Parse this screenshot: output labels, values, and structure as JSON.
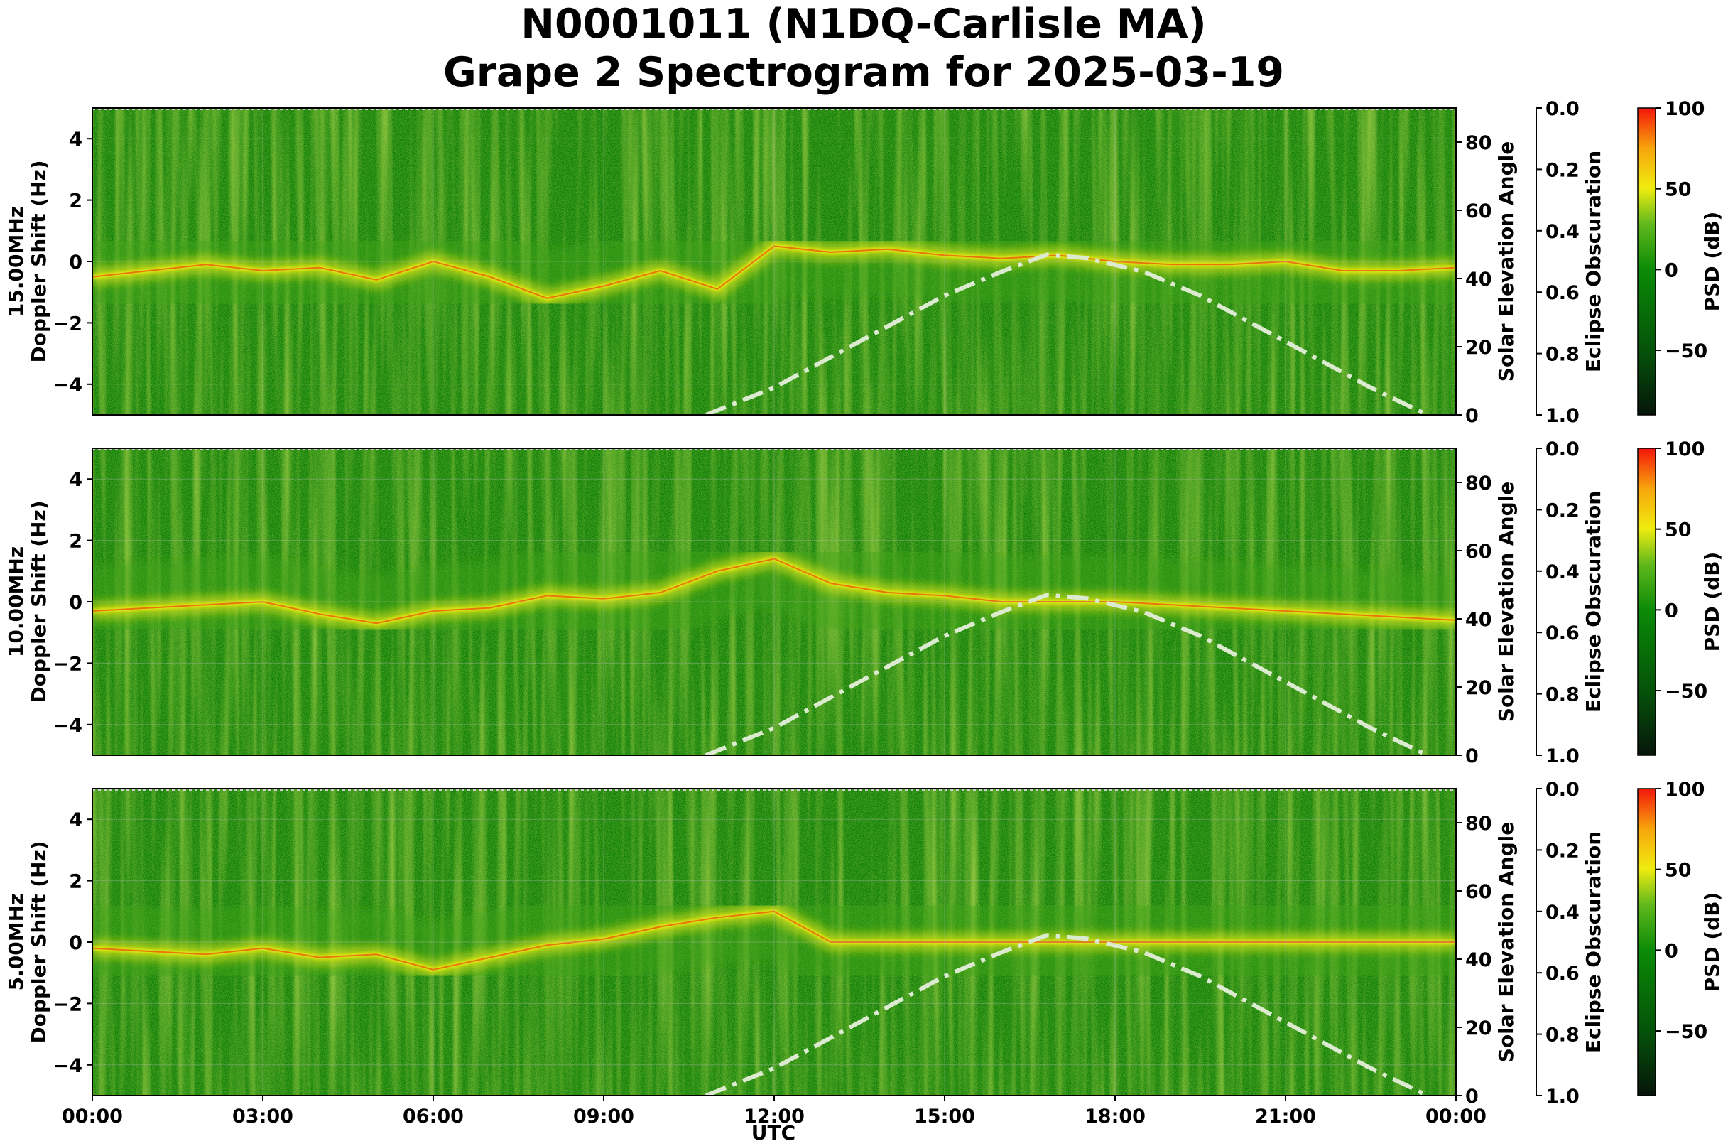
{
  "figure": {
    "title_line1": "N0001011 (N1DQ-Carlisle MA)",
    "title_line2": "Grape 2 Spectrogram for 2025-03-19",
    "xlabel": "UTC",
    "x_tick_labels": [
      "00:00",
      "03:00",
      "06:00",
      "09:00",
      "12:00",
      "15:00",
      "18:00",
      "21:00",
      "00:00"
    ]
  },
  "colors": {
    "background_green": "#0a7d06",
    "mid_green": "#3fa515",
    "yellow": "#f0ec10",
    "red": "#f01c0a",
    "dark": "#0b1a04",
    "sun_curve": "#dcead0",
    "grid": "#bdbdbd"
  },
  "chart_data": [
    {
      "type": "heatmap",
      "panel": "15 MHz",
      "ylabel_line1": "15.00MHz",
      "ylabel_line2": "Doppler Shift (Hz)",
      "ylim": [
        -5,
        5
      ],
      "y_tick_values": [
        4,
        2,
        0,
        -2,
        -4
      ],
      "y_tick_labels": [
        "4",
        "2",
        "0",
        "−2",
        "−4"
      ],
      "right_axis_label": "Solar Elevation Angle",
      "right_axis_ylim": [
        0,
        90
      ],
      "right_tick_values": [
        80,
        60,
        40,
        20,
        0
      ],
      "right_tick_labels": [
        "80",
        "60",
        "40",
        "20",
        "0"
      ],
      "eclipse_label": "Eclipse Obscuration",
      "eclipse_ylim": [
        0,
        1
      ],
      "eclipse_tick_labels": [
        "0.0",
        "0.2",
        "0.4",
        "0.6",
        "0.8",
        "1.0"
      ],
      "colorbar_label": "PSD (dB)",
      "colorbar_range": [
        -90,
        100
      ],
      "colorbar_tick_values": [
        100,
        50,
        0,
        -50
      ],
      "colorbar_tick_labels": [
        "100",
        "50",
        "0",
        "−50"
      ],
      "doppler_trace_hours": [
        0,
        1,
        2,
        3,
        4,
        5,
        6,
        7,
        8,
        9,
        10,
        11,
        12,
        13,
        14,
        15,
        16,
        17,
        18,
        19,
        20,
        21,
        22,
        23,
        24
      ],
      "doppler_trace_hz": [
        -0.5,
        -0.3,
        -0.1,
        -0.3,
        -0.2,
        -0.6,
        0.0,
        -0.5,
        -1.2,
        -0.8,
        -0.3,
        -0.9,
        0.5,
        0.3,
        0.4,
        0.2,
        0.1,
        0.2,
        0.0,
        -0.1,
        -0.1,
        0.0,
        -0.3,
        -0.3,
        -0.2
      ],
      "sun_elevation_hours": [
        10.8,
        12,
        13,
        14,
        15,
        16,
        16.8,
        17.5,
        18.5,
        19.5,
        20.5,
        21.5,
        22.5,
        23.5
      ],
      "sun_elevation_deg": [
        0,
        8,
        17,
        26,
        35,
        42,
        47,
        46,
        42,
        35,
        26,
        17,
        8,
        0
      ]
    },
    {
      "type": "heatmap",
      "panel": "10 MHz",
      "ylabel_line1": "10.00MHz",
      "ylabel_line2": "Doppler Shift (Hz)",
      "ylim": [
        -5,
        5
      ],
      "y_tick_values": [
        4,
        2,
        0,
        -2,
        -4
      ],
      "y_tick_labels": [
        "4",
        "2",
        "0",
        "−2",
        "−4"
      ],
      "right_axis_label": "Solar Elevation Angle",
      "right_axis_ylim": [
        0,
        90
      ],
      "right_tick_values": [
        80,
        60,
        40,
        20,
        0
      ],
      "right_tick_labels": [
        "80",
        "60",
        "40",
        "20",
        "0"
      ],
      "eclipse_label": "Eclipse Obscuration",
      "eclipse_ylim": [
        0,
        1
      ],
      "eclipse_tick_labels": [
        "0.0",
        "0.2",
        "0.4",
        "0.6",
        "0.8",
        "1.0"
      ],
      "colorbar_label": "PSD (dB)",
      "colorbar_range": [
        -90,
        100
      ],
      "colorbar_tick_values": [
        100,
        50,
        0,
        -50
      ],
      "colorbar_tick_labels": [
        "100",
        "50",
        "0",
        "−50"
      ],
      "doppler_trace_hours": [
        0,
        1,
        2,
        3,
        4,
        5,
        6,
        7,
        8,
        9,
        10,
        11,
        12,
        13,
        14,
        15,
        16,
        17,
        18,
        19,
        20,
        21,
        22,
        23,
        24
      ],
      "doppler_trace_hz": [
        -0.3,
        -0.2,
        -0.1,
        0.0,
        -0.4,
        -0.7,
        -0.3,
        -0.2,
        0.2,
        0.1,
        0.3,
        1.0,
        1.4,
        0.6,
        0.3,
        0.2,
        0.0,
        0.0,
        0.0,
        -0.1,
        -0.2,
        -0.3,
        -0.4,
        -0.5,
        -0.6
      ],
      "sun_elevation_hours": [
        10.8,
        12,
        13,
        14,
        15,
        16,
        16.8,
        17.5,
        18.5,
        19.5,
        20.5,
        21.5,
        22.5,
        23.5
      ],
      "sun_elevation_deg": [
        0,
        8,
        17,
        26,
        35,
        42,
        47,
        46,
        42,
        35,
        26,
        17,
        8,
        0
      ]
    },
    {
      "type": "heatmap",
      "panel": "5 MHz",
      "ylabel_line1": "5.00MHz",
      "ylabel_line2": "Doppler Shift (Hz)",
      "ylim": [
        -5,
        5
      ],
      "y_tick_values": [
        4,
        2,
        0,
        -2,
        -4
      ],
      "y_tick_labels": [
        "4",
        "2",
        "0",
        "−2",
        "−4"
      ],
      "right_axis_label": "Solar Elevation Angle",
      "right_axis_ylim": [
        0,
        90
      ],
      "right_tick_values": [
        80,
        60,
        40,
        20,
        0
      ],
      "right_tick_labels": [
        "80",
        "60",
        "40",
        "20",
        "0"
      ],
      "eclipse_label": "Eclipse Obscuration",
      "eclipse_ylim": [
        0,
        1
      ],
      "eclipse_tick_labels": [
        "0.0",
        "0.2",
        "0.4",
        "0.6",
        "0.8",
        "1.0"
      ],
      "colorbar_label": "PSD (dB)",
      "colorbar_range": [
        -90,
        100
      ],
      "colorbar_tick_values": [
        100,
        50,
        0,
        -50
      ],
      "colorbar_tick_labels": [
        "100",
        "50",
        "0",
        "−50"
      ],
      "doppler_trace_hours": [
        0,
        1,
        2,
        3,
        4,
        5,
        6,
        7,
        8,
        9,
        10,
        11,
        12,
        13,
        14,
        15,
        16,
        17,
        18,
        19,
        20,
        21,
        22,
        23,
        24
      ],
      "doppler_trace_hz": [
        -0.2,
        -0.3,
        -0.4,
        -0.2,
        -0.5,
        -0.4,
        -0.9,
        -0.5,
        -0.1,
        0.1,
        0.5,
        0.8,
        1.0,
        0.0,
        0.0,
        0.0,
        0.0,
        0.0,
        0.0,
        0.0,
        0.0,
        0.0,
        0.0,
        0.0,
        0.0
      ],
      "sun_elevation_hours": [
        10.8,
        12,
        13,
        14,
        15,
        16,
        16.8,
        17.5,
        18.5,
        19.5,
        20.5,
        21.5,
        22.5,
        23.5
      ],
      "sun_elevation_deg": [
        0,
        8,
        17,
        26,
        35,
        42,
        47,
        46,
        42,
        35,
        26,
        17,
        8,
        0
      ]
    }
  ]
}
